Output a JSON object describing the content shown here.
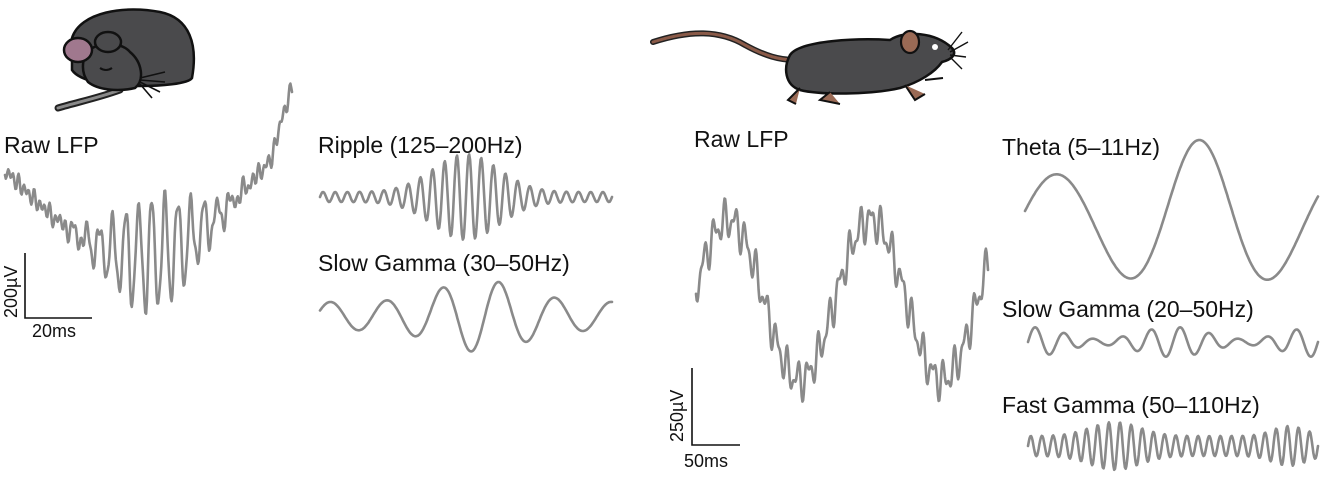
{
  "panels": {
    "sleep": {
      "raw_label": "Raw LFP",
      "band1_label": "Ripple (125–200Hz)",
      "band2_label": "Slow Gamma (30–50Hz)",
      "scale_amp": "200µV",
      "scale_time": "20ms"
    },
    "run": {
      "raw_label": "Raw LFP",
      "band1_label": "Theta (5–11Hz)",
      "band2_label": "Slow Gamma (20–50Hz)",
      "band3_label": "Fast Gamma (50–110Hz)",
      "scale_amp": "250µV",
      "scale_time": "50ms"
    }
  },
  "icons": [
    "sleeping-mouse-icon",
    "running-mouse-icon"
  ],
  "colors": {
    "trace": "#8a8a8a",
    "mouse_body": "#4a4a4c",
    "ear_sleep": "#a0788e",
    "ear_run": "#9a6a55",
    "tail": "#8a5a48"
  }
}
